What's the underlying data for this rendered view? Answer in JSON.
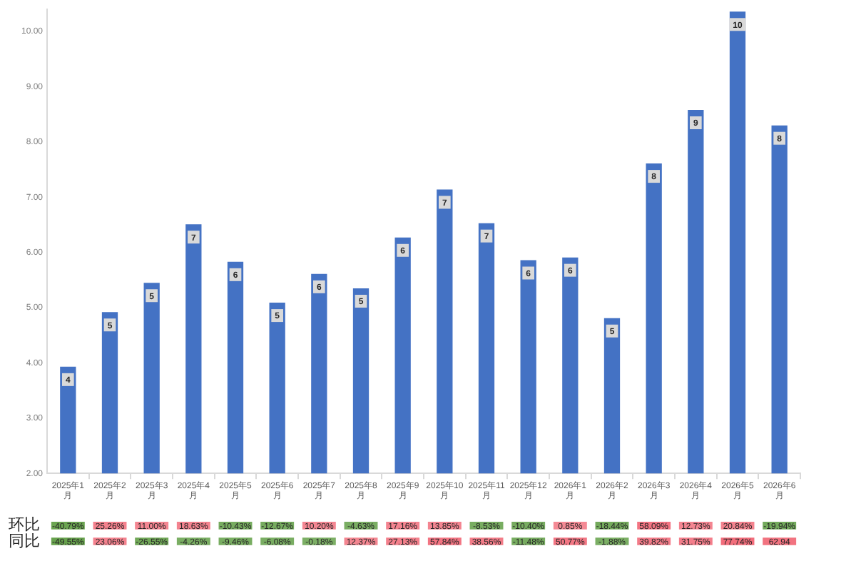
{
  "chart_data": [
    {
      "type": "bar",
      "categories": [
        "2025年1月",
        "2025年2月",
        "2025年3月",
        "2025年4月",
        "2025年5月",
        "2025年6月",
        "2025年7月",
        "2025年8月",
        "2025年9月",
        "2025年10月",
        "2025年11月",
        "2025年12月",
        "2026年1月",
        "2026年2月",
        "2026年3月",
        "2026年4月",
        "2026年5月",
        "2026年6月"
      ],
      "values": [
        3.93,
        4.92,
        5.45,
        6.51,
        5.83,
        5.09,
        5.61,
        5.35,
        6.27,
        7.14,
        6.53,
        5.86,
        5.91,
        4.81,
        7.61,
        8.58,
        10.36,
        8.3
      ],
      "color": "#4472c4",
      "value_labels": [
        "4",
        "5",
        "5",
        "7",
        "6",
        "5",
        "6",
        "5",
        "6",
        "7",
        "7",
        "6",
        "6",
        "5",
        "8",
        "9",
        "10",
        "8"
      ],
      "ylim": [
        2,
        10.4
      ],
      "yticks": [
        {
          "value": 2,
          "label": "2.00"
        },
        {
          "value": 3,
          "label": "3.00"
        },
        {
          "value": 4,
          "label": "4.00"
        },
        {
          "value": 5,
          "label": "5.00"
        },
        {
          "value": 6,
          "label": "6.00"
        },
        {
          "value": 7,
          "label": "7.00"
        },
        {
          "value": 8,
          "label": "8.00"
        },
        {
          "value": 9,
          "label": "9.00"
        },
        {
          "value": 10,
          "label": "10.00"
        }
      ],
      "grid": false,
      "legend": false
    },
    {
      "type": "heatmap",
      "categories": [
        null,
        null,
        null,
        null,
        null,
        null,
        null,
        null,
        null,
        null,
        null,
        null,
        null,
        null,
        null,
        null,
        null,
        null
      ],
      "y_categories": [
        "环比",
        "同比"
      ],
      "cells": [
        [
          -40.79,
          25.26,
          11.0,
          18.63,
          -10.43,
          -12.67,
          10.2,
          -4.63,
          17.16,
          13.85,
          -8.53,
          -10.4,
          0.85,
          -18.44,
          58.09,
          12.73,
          20.84,
          -19.94
        ],
        [
          -49.55,
          23.06,
          -26.55,
          -4.26,
          -9.46,
          -6.08,
          -0.18,
          12.37,
          27.13,
          57.84,
          38.56,
          -11.48,
          50.77,
          -1.88,
          39.82,
          31.75,
          77.74,
          62.94
        ]
      ],
      "cell_labels": [
        [
          "-40.79%",
          "25.26%",
          "11.00%",
          "18.63%",
          "-10.43%",
          "-12.67%",
          "10.20%",
          "-4.63%",
          "17.16%",
          "13.85%",
          "-8.53%",
          "-10.40%",
          "0.85%",
          "-18.44%",
          "58.09%",
          "12.73%",
          "20.84%",
          "-19.94%"
        ],
        [
          "-49.55%",
          "23.06%",
          "-26.55%",
          "-4.26%",
          "-9.46%",
          "-6.08%",
          "-0.18%",
          "12.37%",
          "27.13%",
          "57.84%",
          "38.56%",
          "-11.48%",
          "50.77%",
          "-1.88%",
          "39.82%",
          "31.75%",
          "77.74%",
          "62.94"
        ]
      ]
    }
  ]
}
